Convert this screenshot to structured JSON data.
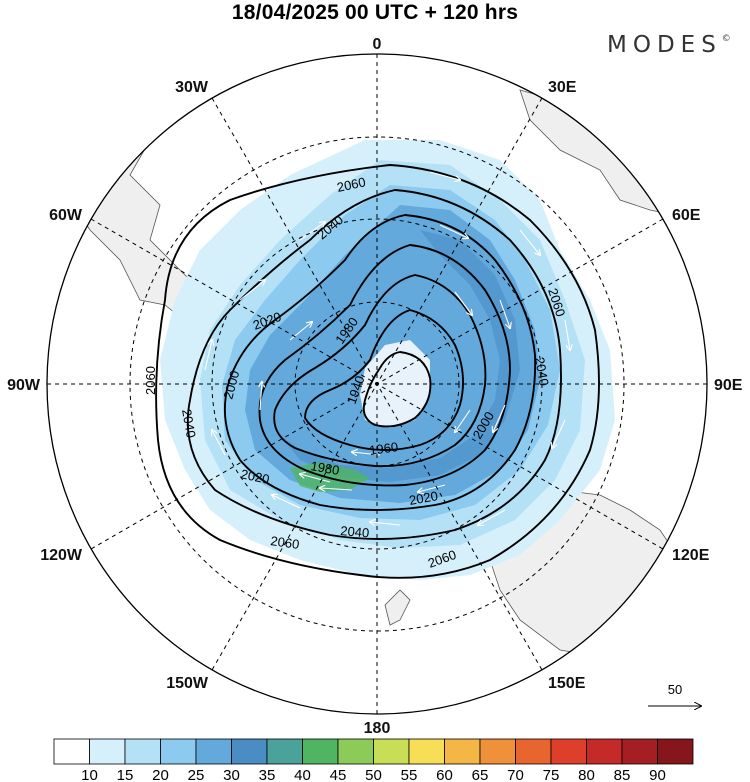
{
  "title": "18/04/2025  00 UTC  + 120 hrs",
  "brand": "MODES",
  "brand_mark": "©",
  "longitude_labels": [
    {
      "text": "0",
      "lon": 0
    },
    {
      "text": "30E",
      "lon": 30
    },
    {
      "text": "60E",
      "lon": 60
    },
    {
      "text": "90E",
      "lon": 90
    },
    {
      "text": "120E",
      "lon": 120
    },
    {
      "text": "150E",
      "lon": 150
    },
    {
      "text": "180",
      "lon": 180
    },
    {
      "text": "150W",
      "lon": -150
    },
    {
      "text": "120W",
      "lon": -120
    },
    {
      "text": "90W",
      "lon": -90
    },
    {
      "text": "60W",
      "lon": -60
    },
    {
      "text": "30W",
      "lon": -30
    }
  ],
  "contour_labels": [
    "2060",
    "2040",
    "2020",
    "2000",
    "1980",
    "1960",
    "1940"
  ],
  "reference_vector": {
    "label": "50"
  },
  "colorbar": {
    "labels": [
      "10",
      "15",
      "20",
      "25",
      "30",
      "35",
      "40",
      "45",
      "50",
      "55",
      "60",
      "65",
      "70",
      "75",
      "80",
      "85",
      "90"
    ],
    "colors": [
      "#ffffff",
      "#d6f0fb",
      "#b4e1f6",
      "#8ccbef",
      "#63a9dc",
      "#4a8dc4",
      "#4ba29a",
      "#4fb562",
      "#8ccb57",
      "#c8de57",
      "#f6df57",
      "#f4b746",
      "#ef903b",
      "#e96530",
      "#dd3f2b",
      "#c42a28",
      "#a51e24",
      "#86161b"
    ]
  },
  "colors": {
    "land": "#efefef",
    "coast": "#555555",
    "contour": "#000000",
    "grid": "#000000"
  },
  "icons": [
    "polar-grid",
    "wind-vector-arrow"
  ]
}
